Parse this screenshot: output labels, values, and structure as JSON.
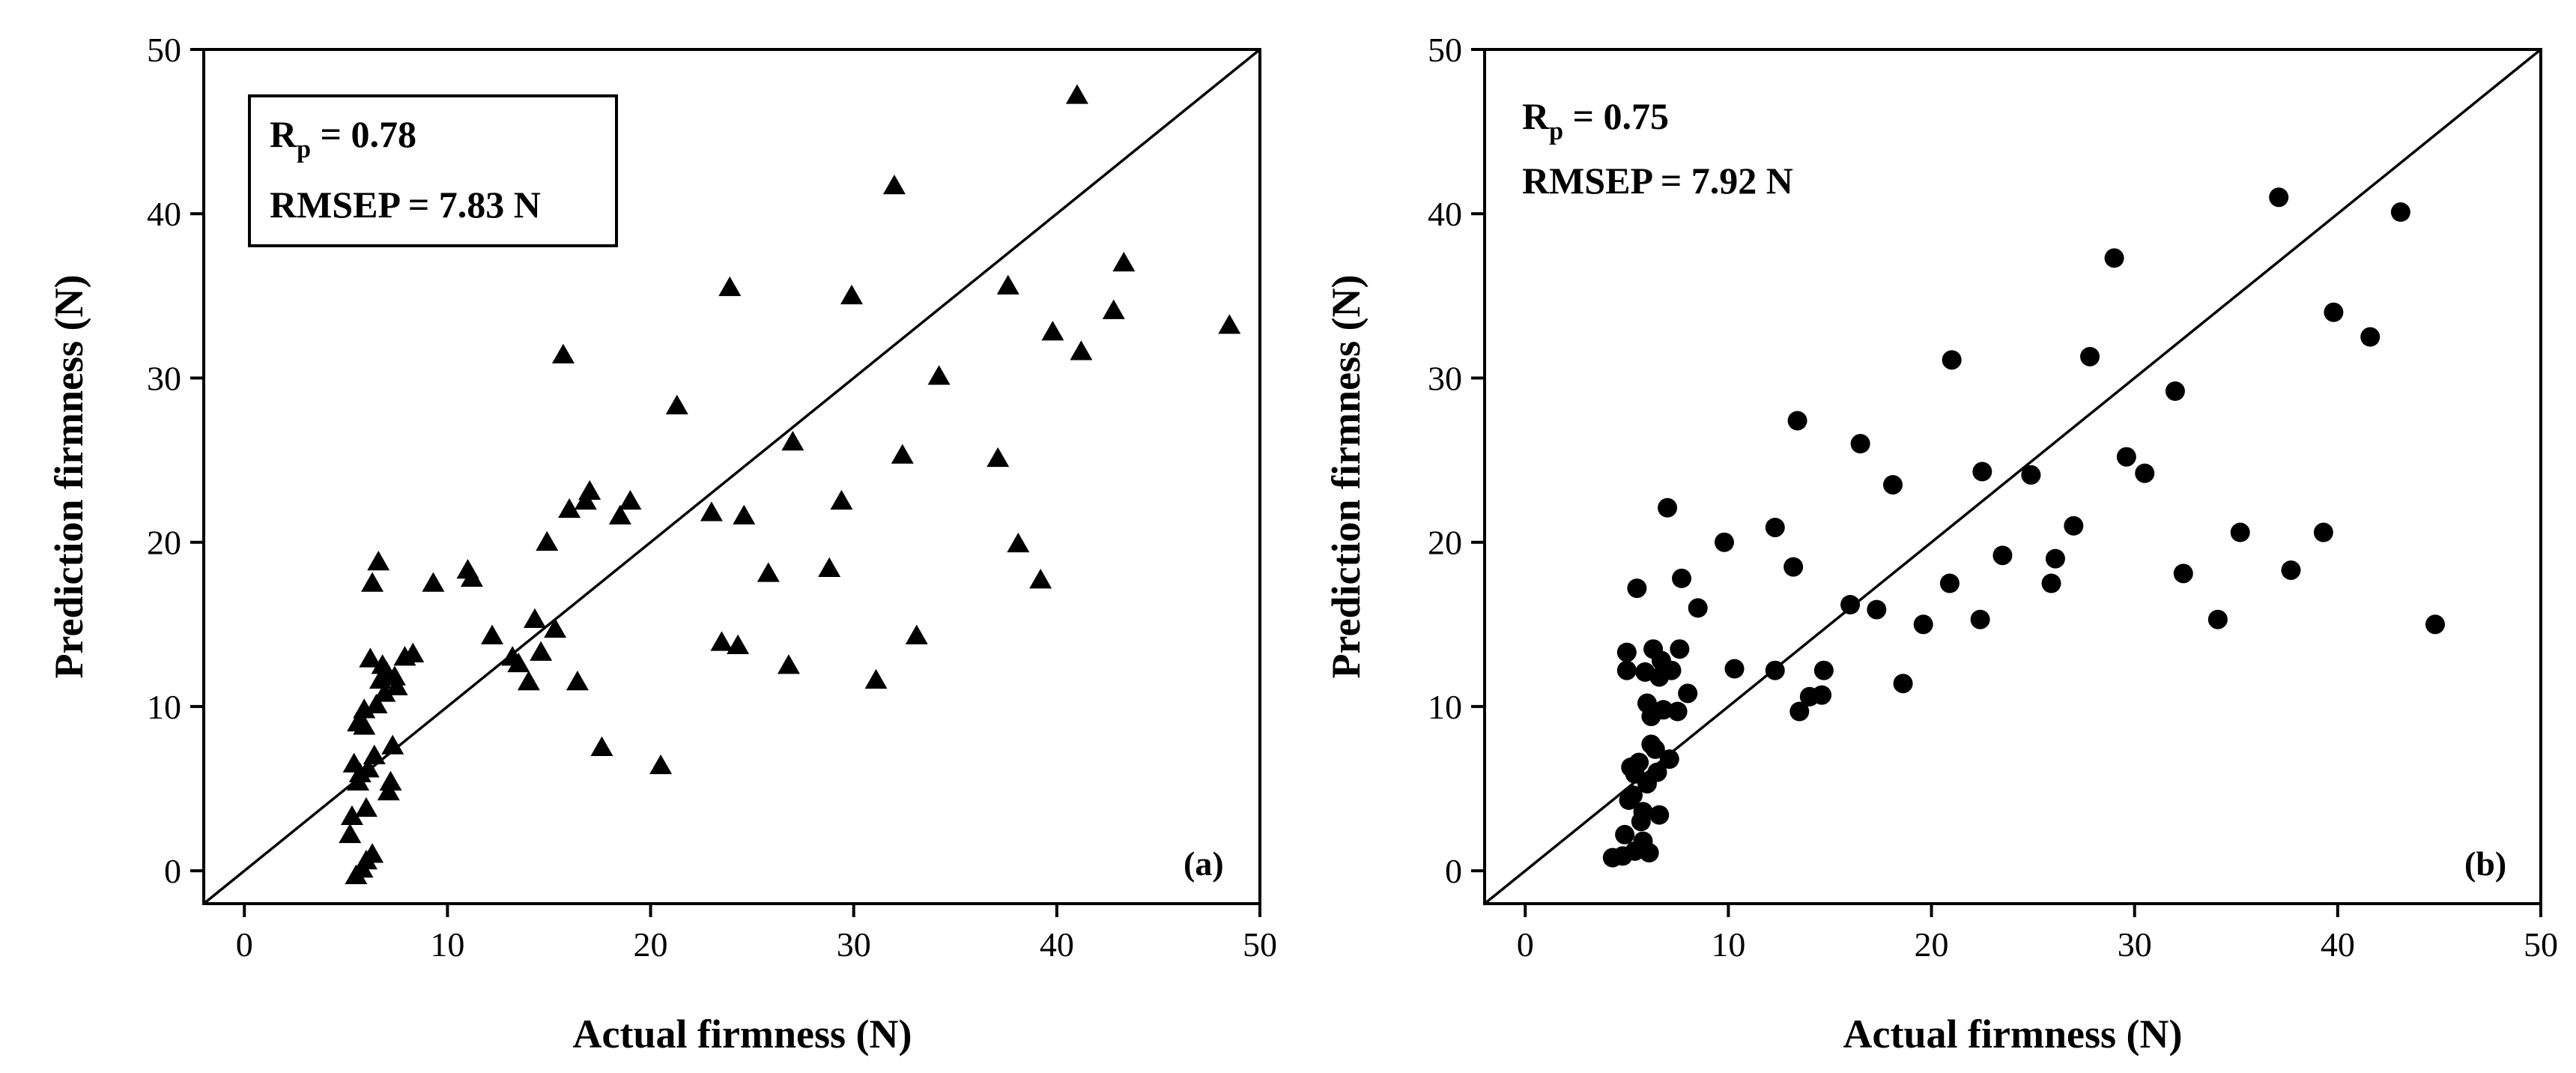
{
  "colors": {
    "marker": "#000000",
    "axis": "#000000",
    "background": "#ffffff"
  },
  "chart_data": [
    {
      "type": "scatter",
      "panel_label": "(a)",
      "marker": "triangle",
      "xlabel": "Actual firmness (N)",
      "ylabel": "Prediction firmness (N)",
      "xlim": [
        -2,
        50
      ],
      "ylim": [
        -2,
        50
      ],
      "xticks": [
        "0",
        "10",
        "20",
        "30",
        "40",
        "50"
      ],
      "yticks": [
        "0",
        "10",
        "20",
        "30",
        "40",
        "50"
      ],
      "reference_line": "y = x",
      "stats": {
        "rp_label": "R",
        "rp_sub": "p",
        "rp_value": " = 0.78",
        "rmsep": "RMSEP = 7.83 N"
      },
      "stats_box": true,
      "points": [
        [
          5.2,
          2.2
        ],
        [
          5.3,
          3.3
        ],
        [
          5.4,
          6.5
        ],
        [
          5.6,
          9.0
        ],
        [
          5.7,
          5.9
        ],
        [
          5.8,
          0.1
        ],
        [
          5.9,
          8.8
        ],
        [
          6.0,
          3.8
        ],
        [
          6.1,
          6.2
        ],
        [
          6.2,
          12.9
        ],
        [
          6.3,
          17.5
        ],
        [
          6.4,
          7.0
        ],
        [
          6.6,
          18.8
        ],
        [
          6.7,
          11.6
        ],
        [
          6.8,
          12.5
        ],
        [
          6.9,
          10.8
        ],
        [
          7.0,
          12.1
        ],
        [
          7.1,
          4.8
        ],
        [
          7.2,
          5.4
        ],
        [
          7.3,
          7.6
        ],
        [
          7.4,
          11.8
        ],
        [
          7.5,
          11.2
        ],
        [
          7.9,
          13.0
        ],
        [
          8.3,
          13.2
        ],
        [
          9.3,
          17.5
        ],
        [
          11.0,
          18.3
        ],
        [
          11.2,
          17.8
        ],
        [
          12.2,
          14.3
        ],
        [
          13.2,
          13.0
        ],
        [
          13.5,
          12.6
        ],
        [
          14.0,
          11.5
        ],
        [
          14.3,
          15.3
        ],
        [
          14.6,
          13.3
        ],
        [
          14.9,
          20.0
        ],
        [
          15.3,
          14.7
        ],
        [
          15.7,
          31.4
        ],
        [
          16.0,
          22.0
        ],
        [
          16.4,
          11.5
        ],
        [
          16.8,
          22.5
        ],
        [
          17.0,
          23.1
        ],
        [
          17.6,
          7.5
        ],
        [
          18.5,
          21.6
        ],
        [
          19.0,
          22.5
        ],
        [
          20.5,
          6.4
        ],
        [
          21.3,
          28.3
        ],
        [
          23.0,
          21.8
        ],
        [
          23.5,
          13.9
        ],
        [
          23.9,
          35.5
        ],
        [
          24.3,
          13.7
        ],
        [
          24.6,
          21.6
        ],
        [
          25.8,
          18.1
        ],
        [
          26.8,
          12.5
        ],
        [
          27.0,
          26.1
        ],
        [
          28.8,
          18.4
        ],
        [
          29.4,
          22.5
        ],
        [
          29.9,
          35.0
        ],
        [
          31.1,
          11.6
        ],
        [
          32.0,
          41.7
        ],
        [
          32.4,
          25.3
        ],
        [
          33.1,
          14.3
        ],
        [
          34.2,
          30.1
        ],
        [
          37.1,
          25.1
        ],
        [
          37.6,
          35.6
        ],
        [
          38.1,
          19.9
        ],
        [
          39.2,
          17.7
        ],
        [
          39.8,
          32.8
        ],
        [
          41.0,
          47.2
        ],
        [
          41.2,
          31.6
        ],
        [
          42.8,
          34.1
        ],
        [
          43.3,
          37.0
        ],
        [
          48.5,
          33.2
        ],
        [
          5.5,
          -0.3
        ],
        [
          6.0,
          0.6
        ],
        [
          5.6,
          5.4
        ],
        [
          6.3,
          1.0
        ],
        [
          6.5,
          10.1
        ],
        [
          5.9,
          9.8
        ]
      ]
    },
    {
      "type": "scatter",
      "panel_label": "(b)",
      "marker": "circle",
      "xlabel": "Actual firmness (N)",
      "ylabel": "Prediction firmness (N)",
      "xlim": [
        -2,
        50
      ],
      "ylim": [
        -2,
        50
      ],
      "xticks": [
        "0",
        "10",
        "20",
        "30",
        "40",
        "50"
      ],
      "yticks": [
        "0",
        "10",
        "20",
        "30",
        "40",
        "50"
      ],
      "reference_line": "y = x",
      "stats": {
        "rp_label": "R",
        "rp_sub": "p",
        "rp_value": " = 0.75",
        "rmsep": "RMSEP = 7.92 N"
      },
      "stats_box": false,
      "points": [
        [
          4.3,
          0.8
        ],
        [
          4.9,
          2.2
        ],
        [
          5.0,
          13.3
        ],
        [
          5.0,
          12.2
        ],
        [
          5.2,
          6.3
        ],
        [
          5.3,
          4.6
        ],
        [
          5.4,
          5.9
        ],
        [
          5.5,
          17.2
        ],
        [
          5.6,
          6.6
        ],
        [
          5.7,
          3.0
        ],
        [
          5.8,
          1.8
        ],
        [
          5.9,
          12.1
        ],
        [
          6.0,
          10.2
        ],
        [
          6.0,
          5.3
        ],
        [
          6.1,
          1.1
        ],
        [
          6.2,
          9.4
        ],
        [
          6.3,
          13.5
        ],
        [
          6.4,
          7.4
        ],
        [
          6.5,
          6.0
        ],
        [
          6.6,
          11.8
        ],
        [
          6.6,
          3.4
        ],
        [
          6.8,
          9.8
        ],
        [
          7.0,
          22.1
        ],
        [
          7.1,
          6.8
        ],
        [
          7.2,
          12.2
        ],
        [
          7.5,
          9.7
        ],
        [
          7.6,
          13.5
        ],
        [
          7.7,
          17.8
        ],
        [
          8.0,
          10.8
        ],
        [
          8.5,
          16.0
        ],
        [
          9.8,
          20.0
        ],
        [
          10.3,
          12.3
        ],
        [
          12.3,
          20.9
        ],
        [
          12.3,
          12.2
        ],
        [
          13.2,
          18.5
        ],
        [
          13.4,
          27.4
        ],
        [
          13.5,
          9.7
        ],
        [
          14.0,
          10.6
        ],
        [
          14.6,
          10.7
        ],
        [
          14.7,
          12.2
        ],
        [
          16.0,
          16.2
        ],
        [
          16.5,
          26.0
        ],
        [
          17.3,
          15.9
        ],
        [
          18.1,
          23.5
        ],
        [
          18.6,
          11.4
        ],
        [
          19.6,
          15.0
        ],
        [
          20.9,
          17.5
        ],
        [
          21.0,
          31.1
        ],
        [
          22.4,
          15.3
        ],
        [
          22.5,
          24.3
        ],
        [
          23.5,
          19.2
        ],
        [
          24.9,
          24.1
        ],
        [
          25.9,
          17.5
        ],
        [
          26.1,
          19.0
        ],
        [
          27.0,
          21.0
        ],
        [
          27.8,
          31.3
        ],
        [
          29.0,
          37.3
        ],
        [
          29.6,
          25.2
        ],
        [
          30.5,
          24.2
        ],
        [
          32.0,
          29.2
        ],
        [
          32.4,
          18.1
        ],
        [
          34.1,
          15.3
        ],
        [
          35.2,
          20.6
        ],
        [
          37.1,
          41.0
        ],
        [
          37.7,
          18.3
        ],
        [
          39.3,
          20.6
        ],
        [
          39.8,
          34.0
        ],
        [
          41.6,
          32.5
        ],
        [
          43.1,
          40.1
        ],
        [
          44.8,
          15.0
        ],
        [
          4.8,
          0.9
        ],
        [
          5.1,
          4.3
        ],
        [
          5.8,
          3.6
        ],
        [
          6.2,
          7.7
        ],
        [
          5.4,
          1.2
        ],
        [
          6.7,
          12.8
        ]
      ]
    }
  ]
}
